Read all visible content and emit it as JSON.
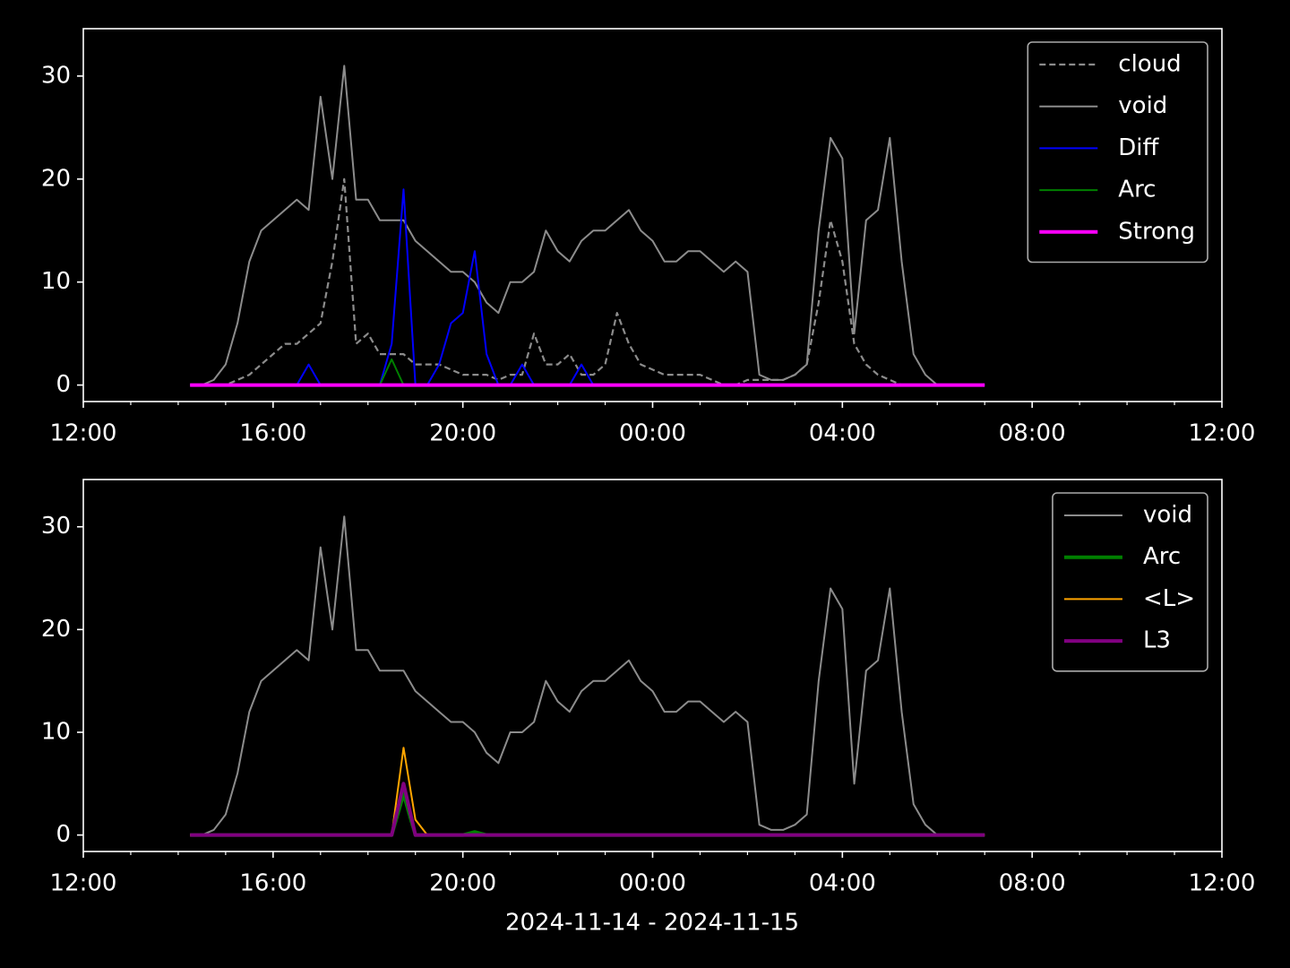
{
  "chart_data": [
    {
      "type": "line",
      "x": [
        14.25,
        14.5,
        14.75,
        15,
        15.25,
        15.5,
        15.75,
        16,
        16.25,
        16.5,
        16.75,
        17,
        17.25,
        17.5,
        17.75,
        18,
        18.25,
        18.5,
        18.75,
        19,
        19.25,
        19.5,
        19.75,
        20,
        20.25,
        20.5,
        20.75,
        21,
        21.25,
        21.5,
        21.75,
        22,
        22.25,
        22.5,
        22.75,
        23,
        23.25,
        23.5,
        23.75,
        24,
        24.25,
        24.5,
        24.75,
        25,
        25.25,
        25.5,
        25.75,
        26,
        26.25,
        26.5,
        26.75,
        27,
        27.25,
        27.5,
        27.75,
        28,
        28.25,
        28.5,
        28.75,
        29,
        29.25,
        29.5,
        29.75,
        30,
        30.25,
        30.5,
        30.75,
        31
      ],
      "series": [
        {
          "name": "cloud",
          "color": "#8c8c8c",
          "linestyle": "dashed",
          "values": [
            0,
            0,
            0,
            0,
            0.5,
            1,
            2,
            3,
            4,
            4,
            5,
            6,
            12,
            20,
            4,
            5,
            3,
            3,
            3,
            2,
            2,
            2,
            1.5,
            1,
            1,
            1,
            0.5,
            1,
            1,
            5,
            2,
            2,
            3,
            1,
            1,
            2,
            7,
            4,
            2,
            1.5,
            1,
            1,
            1,
            1,
            0.5,
            0,
            0,
            0.5,
            0.5,
            0.5,
            0.5,
            1,
            2,
            8,
            16,
            12,
            4,
            2,
            1,
            0.5,
            0,
            0,
            0,
            0,
            null,
            null,
            null,
            null
          ]
        },
        {
          "name": "void",
          "color": "#8c8c8c",
          "linestyle": "solid",
          "values": [
            0,
            0,
            0.5,
            2,
            6,
            12,
            15,
            16,
            17,
            18,
            17,
            28,
            20,
            31,
            18,
            18,
            16,
            16,
            16,
            14,
            13,
            12,
            11,
            11,
            10,
            8,
            7,
            10,
            10,
            11,
            15,
            13,
            12,
            14,
            15,
            15,
            16,
            17,
            15,
            14,
            12,
            12,
            13,
            13,
            12,
            11,
            12,
            11,
            1,
            0.5,
            0.5,
            1,
            2,
            15,
            24,
            22,
            5,
            16,
            17,
            24,
            12,
            3,
            1,
            0,
            null,
            null,
            null,
            null
          ]
        },
        {
          "name": "Diff",
          "color": "#0000ff",
          "linestyle": "solid",
          "values": [
            0,
            0,
            0,
            0,
            0,
            0,
            0,
            0,
            0,
            0,
            2,
            0,
            0,
            0,
            0,
            0,
            0,
            4,
            19,
            0,
            0,
            2,
            6,
            7,
            13,
            3,
            0,
            0,
            2,
            0,
            0,
            0,
            0,
            2,
            0,
            0,
            0,
            0,
            0,
            0,
            0,
            0,
            0,
            0,
            0,
            0,
            0,
            0,
            0,
            0,
            0,
            0,
            0,
            0,
            0,
            0,
            0,
            0,
            0,
            0,
            0,
            0,
            0,
            0,
            0,
            0,
            0,
            0
          ]
        },
        {
          "name": "Arc",
          "color": "#008000",
          "linestyle": "solid",
          "values": [
            0,
            0,
            0,
            0,
            0,
            0,
            0,
            0,
            0,
            0,
            0,
            0,
            0,
            0,
            0,
            0,
            0,
            2.5,
            0,
            0,
            0,
            0,
            0,
            0,
            0,
            0,
            0,
            0,
            0,
            0,
            0,
            0,
            0,
            0,
            0,
            0,
            0,
            0,
            0,
            0,
            0,
            0,
            0,
            0,
            0,
            0,
            0,
            0,
            0,
            0,
            0,
            0,
            0,
            0,
            0,
            0,
            0,
            0,
            0,
            0,
            0,
            0,
            0,
            0,
            0,
            0,
            0,
            0
          ]
        },
        {
          "name": "Strong",
          "color": "#ff00ff",
          "linestyle": "thick",
          "values": [
            0,
            0,
            0,
            0,
            0,
            0,
            0,
            0,
            0,
            0,
            0,
            0,
            0,
            0,
            0,
            0,
            0,
            0,
            0,
            0,
            0,
            0,
            0,
            0,
            0,
            0,
            0,
            0,
            0,
            0,
            0,
            0,
            0,
            0,
            0,
            0,
            0,
            0,
            0,
            0,
            0,
            0,
            0,
            0,
            0,
            0,
            0,
            0,
            0,
            0,
            0,
            0,
            0,
            0,
            0,
            0,
            0,
            0,
            0,
            0,
            0,
            0,
            0,
            0,
            0,
            0,
            0,
            0
          ]
        }
      ],
      "xlim": [
        12,
        36
      ],
      "xticks": [
        {
          "value": 12,
          "label": "12:00"
        },
        {
          "value": 16,
          "label": "16:00"
        },
        {
          "value": 20,
          "label": "20:00"
        },
        {
          "value": 24,
          "label": "00:00"
        },
        {
          "value": 28,
          "label": "04:00"
        },
        {
          "value": 32,
          "label": "08:00"
        },
        {
          "value": 36,
          "label": "12:00"
        }
      ],
      "xminorticks": [
        13,
        14,
        15,
        17,
        18,
        19,
        21,
        22,
        23,
        25,
        26,
        27,
        29,
        30,
        31,
        33,
        34,
        35
      ],
      "ylim": [
        -1.6,
        34.6
      ],
      "yticks": [
        0,
        10,
        20,
        30
      ],
      "legend": "upper right"
    },
    {
      "type": "line",
      "x": [
        14.25,
        14.5,
        14.75,
        15,
        15.25,
        15.5,
        15.75,
        16,
        16.25,
        16.5,
        16.75,
        17,
        17.25,
        17.5,
        17.75,
        18,
        18.25,
        18.5,
        18.75,
        19,
        19.25,
        19.5,
        19.75,
        20,
        20.25,
        20.5,
        20.75,
        21,
        21.25,
        21.5,
        21.75,
        22,
        22.25,
        22.5,
        22.75,
        23,
        23.25,
        23.5,
        23.75,
        24,
        24.25,
        24.5,
        24.75,
        25,
        25.25,
        25.5,
        25.75,
        26,
        26.25,
        26.5,
        26.75,
        27,
        27.25,
        27.5,
        27.75,
        28,
        28.25,
        28.5,
        28.75,
        29,
        29.25,
        29.5,
        29.75,
        30,
        30.25,
        30.5,
        30.75,
        31
      ],
      "series": [
        {
          "name": "void",
          "color": "#8c8c8c",
          "linestyle": "solid",
          "values": [
            0,
            0,
            0.5,
            2,
            6,
            12,
            15,
            16,
            17,
            18,
            17,
            28,
            20,
            31,
            18,
            18,
            16,
            16,
            16,
            14,
            13,
            12,
            11,
            11,
            10,
            8,
            7,
            10,
            10,
            11,
            15,
            13,
            12,
            14,
            15,
            15,
            16,
            17,
            15,
            14,
            12,
            12,
            13,
            13,
            12,
            11,
            12,
            11,
            1,
            0.5,
            0.5,
            1,
            2,
            15,
            24,
            22,
            5,
            16,
            17,
            24,
            12,
            3,
            1,
            0,
            null,
            null,
            null,
            null
          ]
        },
        {
          "name": "Arc",
          "color": "#008000",
          "linestyle": "thick",
          "values": [
            0,
            0,
            0,
            0,
            0,
            0,
            0,
            0,
            0,
            0,
            0,
            0,
            0,
            0,
            0,
            0,
            0,
            0,
            4,
            0,
            0,
            0,
            0,
            0,
            0.3,
            0,
            0,
            0,
            0,
            0,
            0,
            0,
            0,
            0,
            0,
            0,
            0,
            0,
            0,
            0,
            0,
            0,
            0,
            0,
            0,
            0,
            0,
            0,
            0,
            0,
            0,
            0,
            0,
            0,
            0,
            0,
            0,
            0,
            0,
            0,
            0,
            0,
            0,
            0,
            0,
            0,
            0,
            0
          ]
        },
        {
          "name": "<L>",
          "color": "#ffa500",
          "linestyle": "solid",
          "values": [
            0,
            0,
            0,
            0,
            0,
            0,
            0,
            0,
            0,
            0,
            0,
            0,
            0,
            0,
            0,
            0,
            0,
            0,
            8.5,
            1.5,
            0,
            0,
            0,
            0,
            0,
            0,
            0,
            0,
            0,
            0,
            0,
            0,
            0,
            0,
            0,
            0,
            0,
            0,
            0,
            0,
            0,
            0,
            0,
            0,
            0,
            0,
            0,
            0,
            0,
            0,
            0,
            0,
            0,
            0,
            0,
            0,
            0,
            0,
            0,
            0,
            0,
            0,
            0,
            0,
            0,
            0,
            0,
            0
          ]
        },
        {
          "name": "L3",
          "color": "#800080",
          "linestyle": "thick",
          "values": [
            0,
            0,
            0,
            0,
            0,
            0,
            0,
            0,
            0,
            0,
            0,
            0,
            0,
            0,
            0,
            0,
            0,
            0,
            5,
            0,
            0,
            0,
            0,
            0,
            0,
            0,
            0,
            0,
            0,
            0,
            0,
            0,
            0,
            0,
            0,
            0,
            0,
            0,
            0,
            0,
            0,
            0,
            0,
            0,
            0,
            0,
            0,
            0,
            0,
            0,
            0,
            0,
            0,
            0,
            0,
            0,
            0,
            0,
            0,
            0,
            0,
            0,
            0,
            0,
            0,
            0,
            0,
            0
          ]
        }
      ],
      "xlim": [
        12,
        36
      ],
      "xticks": [
        {
          "value": 12,
          "label": "12:00"
        },
        {
          "value": 16,
          "label": "16:00"
        },
        {
          "value": 20,
          "label": "20:00"
        },
        {
          "value": 24,
          "label": "00:00"
        },
        {
          "value": 28,
          "label": "04:00"
        },
        {
          "value": 32,
          "label": "08:00"
        },
        {
          "value": 36,
          "label": "12:00"
        }
      ],
      "xminorticks": [
        13,
        14,
        15,
        17,
        18,
        19,
        21,
        22,
        23,
        25,
        26,
        27,
        29,
        30,
        31,
        33,
        34,
        35
      ],
      "ylim": [
        -1.6,
        34.6
      ],
      "yticks": [
        0,
        10,
        20,
        30
      ],
      "legend": "upper right",
      "x_label": "2024-11-14 - 2024-11-15"
    }
  ]
}
